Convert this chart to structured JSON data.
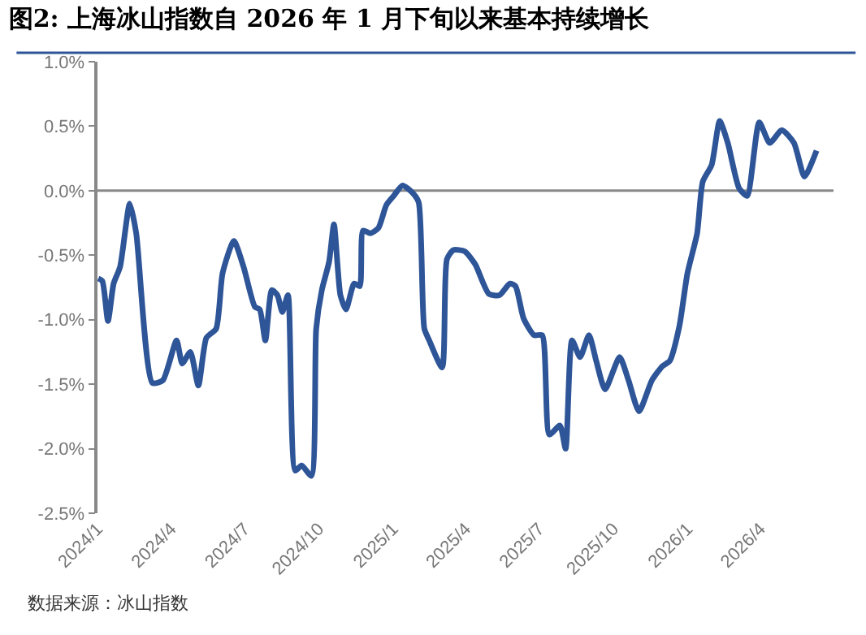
{
  "chart_data": {
    "type": "line",
    "title": "图2: 上海冰山指数自 2026 年 1 月下旬以来基本持续增长",
    "annotations": [
      "数据来源：冰山指数"
    ],
    "x": [
      "2024-01-02",
      "2024-01-07",
      "2024-01-14",
      "2024-01-21",
      "2024-01-29",
      "2024-02-10",
      "2024-02-18",
      "2024-03-09",
      "2024-03-22",
      "2024-04-08",
      "2024-04-15",
      "2024-04-25",
      "2024-05-05",
      "2024-05-15",
      "2024-05-27",
      "2024-06-04",
      "2024-06-18",
      "2024-06-30",
      "2024-07-14",
      "2024-07-20",
      "2024-07-27",
      "2024-08-04",
      "2024-08-11",
      "2024-08-17",
      "2024-08-24",
      "2024-09-02",
      "2024-09-10",
      "2024-09-22",
      "2024-09-28",
      "2024-10-05",
      "2024-10-14",
      "2024-10-20",
      "2024-10-28",
      "2024-11-04",
      "2024-11-14",
      "2024-11-21",
      "2024-11-25",
      "2024-12-04",
      "2024-12-14",
      "2024-12-24",
      "2025-01-02",
      "2025-01-13",
      "2025-01-26",
      "2025-02-02",
      "2025-02-09",
      "2025-02-15",
      "2025-03-03",
      "2025-03-09",
      "2025-03-17",
      "2025-03-31",
      "2025-04-13",
      "2025-04-30",
      "2025-05-13",
      "2025-05-26",
      "2025-06-02",
      "2025-06-12",
      "2025-06-25",
      "2025-07-05",
      "2025-07-14",
      "2025-07-27",
      "2025-08-03",
      "2025-08-11",
      "2025-08-21",
      "2025-09-01",
      "2025-09-10",
      "2025-09-21",
      "2025-10-09",
      "2025-10-20",
      "2025-11-02",
      "2025-11-18",
      "2025-12-01",
      "2025-12-10",
      "2025-12-22",
      "2026-01-01",
      "2026-01-13",
      "2026-01-20",
      "2026-01-31",
      "2026-02-10",
      "2026-02-20",
      "2026-03-06",
      "2026-03-16",
      "2026-03-31",
      "2026-04-13",
      "2026-04-28",
      "2026-05-13",
      "2026-05-26",
      "2026-06-10"
    ],
    "series": [
      {
        "color": "#2e5597",
        "values": [
          -0.68,
          -0.7,
          -1.01,
          -0.72,
          -0.59,
          -0.1,
          -0.33,
          -1.49,
          -1.47,
          -1.16,
          -1.34,
          -1.25,
          -1.51,
          -1.14,
          -1.07,
          -0.64,
          -0.39,
          -0.59,
          -0.9,
          -0.92,
          -1.16,
          -0.77,
          -0.81,
          -0.94,
          -0.81,
          -2.17,
          -2.13,
          -2.21,
          -1.07,
          -0.77,
          -0.55,
          -0.26,
          -0.81,
          -0.92,
          -0.72,
          -0.74,
          -0.31,
          -0.33,
          -0.29,
          -0.11,
          -0.04,
          0.04,
          -0.02,
          -0.09,
          -1.07,
          -1.16,
          -1.37,
          -0.53,
          -0.46,
          -0.47,
          -0.57,
          -0.8,
          -0.81,
          -0.72,
          -0.74,
          -0.99,
          -1.12,
          -1.12,
          -1.89,
          -1.82,
          -2.0,
          -1.16,
          -1.29,
          -1.12,
          -1.32,
          -1.54,
          -1.29,
          -1.47,
          -1.71,
          -1.47,
          -1.36,
          -1.32,
          -1.05,
          -0.64,
          -0.33,
          0.07,
          0.2,
          0.54,
          0.37,
          0.02,
          -0.04,
          0.53,
          0.37,
          0.47,
          0.37,
          0.11,
          0.31
        ]
      }
    ],
    "xlim": [
      "2024-01-01",
      "2026-07-01"
    ],
    "xticks": [
      {
        "value": "2024-01-01",
        "label": "2024/1"
      },
      {
        "value": "2024-04-01",
        "label": "2024/4"
      },
      {
        "value": "2024-07-01",
        "label": "2024/7"
      },
      {
        "value": "2024-10-01",
        "label": "2024/10"
      },
      {
        "value": "2025-01-01",
        "label": "2025/1"
      },
      {
        "value": "2025-04-01",
        "label": "2025/4"
      },
      {
        "value": "2025-07-01",
        "label": "2025/7"
      },
      {
        "value": "2025-10-01",
        "label": "2025/10"
      },
      {
        "value": "2026-01-01",
        "label": "2026/1"
      },
      {
        "value": "2026-04-01",
        "label": "2026/4"
      }
    ],
    "ylim": [
      -2.5,
      1.0
    ],
    "yticks": [
      {
        "value": -2.5,
        "label": "-2.5%"
      },
      {
        "value": -2.0,
        "label": "-2.0%"
      },
      {
        "value": -1.5,
        "label": "-1.5%"
      },
      {
        "value": -1.0,
        "label": "-1.0%"
      },
      {
        "value": -0.5,
        "label": "-0.5%"
      },
      {
        "value": 0.0,
        "label": "0.0%"
      },
      {
        "value": 0.5,
        "label": "0.5%"
      },
      {
        "value": 1.0,
        "label": "1.0%"
      }
    ],
    "ref_lines": [
      {
        "axis": "y",
        "value": 0,
        "color": "#888888"
      }
    ],
    "grid": false,
    "marker": "none",
    "line_style": "solid"
  }
}
